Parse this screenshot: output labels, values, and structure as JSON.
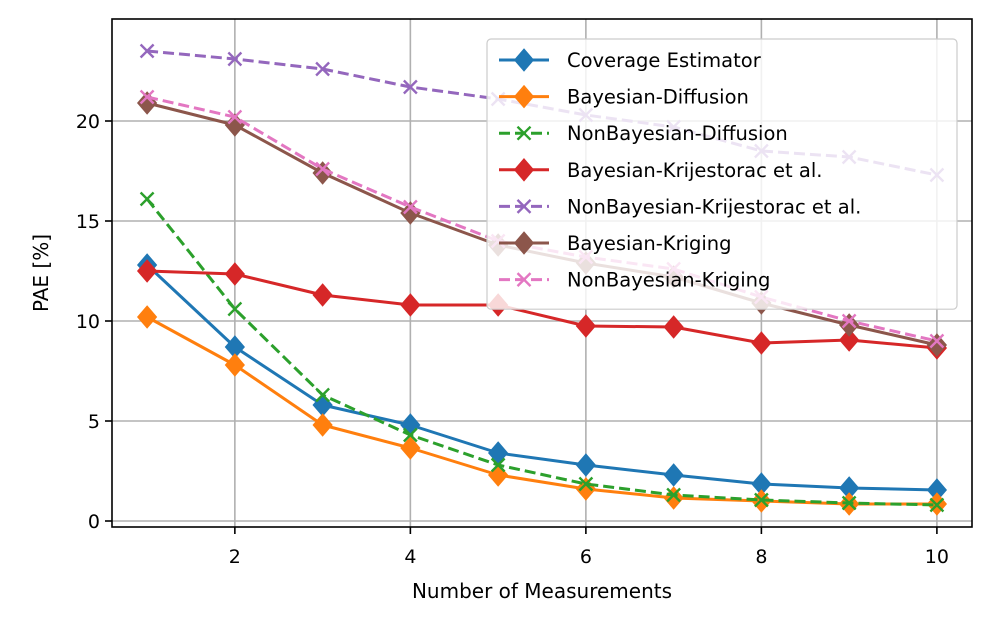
{
  "chart_data": {
    "type": "line",
    "title": "",
    "xlabel": "Number of Measurements",
    "ylabel": "PAE [%]",
    "xlim": [
      0.6,
      10.4
    ],
    "ylim": [
      -0.3,
      25.1
    ],
    "xticks": [
      2,
      4,
      6,
      8,
      10
    ],
    "yticks": [
      0,
      5,
      10,
      15,
      20
    ],
    "grid": true,
    "legend_position": "top-right",
    "x": [
      1,
      2,
      3,
      4,
      5,
      6,
      7,
      8,
      9,
      10
    ],
    "series": [
      {
        "name": "Coverage Estimator",
        "color": "#1f77b4",
        "linestyle": "solid",
        "marker": "diamond",
        "values": [
          12.8,
          8.7,
          5.8,
          4.8,
          3.4,
          2.8,
          2.3,
          1.85,
          1.65,
          1.55
        ]
      },
      {
        "name": "Bayesian-Diffusion",
        "color": "#ff7f0e",
        "linestyle": "solid",
        "marker": "diamond",
        "values": [
          10.2,
          7.8,
          4.8,
          3.65,
          2.3,
          1.6,
          1.15,
          1.0,
          0.85,
          0.85
        ]
      },
      {
        "name": "NonBayesian-Diffusion",
        "color": "#2ca02c",
        "linestyle": "dashed",
        "marker": "x",
        "values": [
          16.1,
          10.6,
          6.3,
          4.3,
          2.8,
          1.85,
          1.3,
          1.05,
          0.9,
          0.8
        ]
      },
      {
        "name": "Bayesian-Krijestorac et al.",
        "color": "#d62728",
        "linestyle": "solid",
        "marker": "diamond",
        "values": [
          12.5,
          12.35,
          11.3,
          10.8,
          10.8,
          9.75,
          9.7,
          8.9,
          9.05,
          8.65
        ]
      },
      {
        "name": "NonBayesian-Krijestorac et al.",
        "color": "#9467bd",
        "linestyle": "dashed",
        "marker": "x",
        "values": [
          23.5,
          23.1,
          22.6,
          21.7,
          21.1,
          20.3,
          19.7,
          18.5,
          18.2,
          17.3
        ]
      },
      {
        "name": "Bayesian-Kriging",
        "color": "#8c564b",
        "linestyle": "solid",
        "marker": "diamond",
        "values": [
          20.9,
          19.8,
          17.4,
          15.4,
          13.8,
          12.9,
          12.2,
          10.9,
          9.8,
          8.8
        ]
      },
      {
        "name": "NonBayesian-Kriging",
        "color": "#e377c2",
        "linestyle": "dashed",
        "marker": "x",
        "values": [
          21.2,
          20.2,
          17.6,
          15.7,
          14.0,
          13.2,
          12.6,
          11.2,
          10.0,
          9.0
        ]
      }
    ]
  }
}
